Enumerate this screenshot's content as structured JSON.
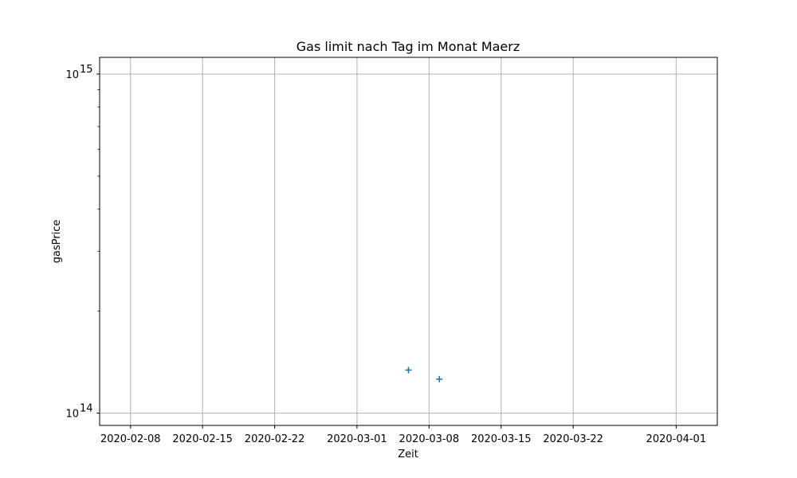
{
  "chart_data": {
    "type": "scatter",
    "title": "Gas limit nach Tag im Monat Maerz",
    "xlabel": "Zeit",
    "ylabel": "gasPrice",
    "x_axis": {
      "kind": "date",
      "range": [
        "2020-02-05",
        "2020-04-05"
      ],
      "ticks": [
        "2020-02-08",
        "2020-02-15",
        "2020-02-22",
        "2020-03-01",
        "2020-03-08",
        "2020-03-15",
        "2020-03-22",
        "2020-04-01"
      ]
    },
    "y_axis": {
      "scale": "log",
      "range": [
        92000000000000,
        1120000000000000
      ],
      "major_ticks": [
        {
          "value": 100000000000000,
          "base": "10",
          "exponent": "14"
        },
        {
          "value": 1000000000000000,
          "base": "10",
          "exponent": "15"
        }
      ],
      "minor_ticks": [
        200000000000000,
        300000000000000,
        400000000000000,
        500000000000000,
        600000000000000,
        700000000000000,
        800000000000000,
        900000000000000
      ]
    },
    "grid": true,
    "marker": "+",
    "series": [
      {
        "color": "#1f77b4",
        "points": [
          {
            "x": "2020-03-06",
            "y": 134000000000000
          },
          {
            "x": "2020-03-09",
            "y": 126000000000000
          }
        ]
      }
    ]
  }
}
